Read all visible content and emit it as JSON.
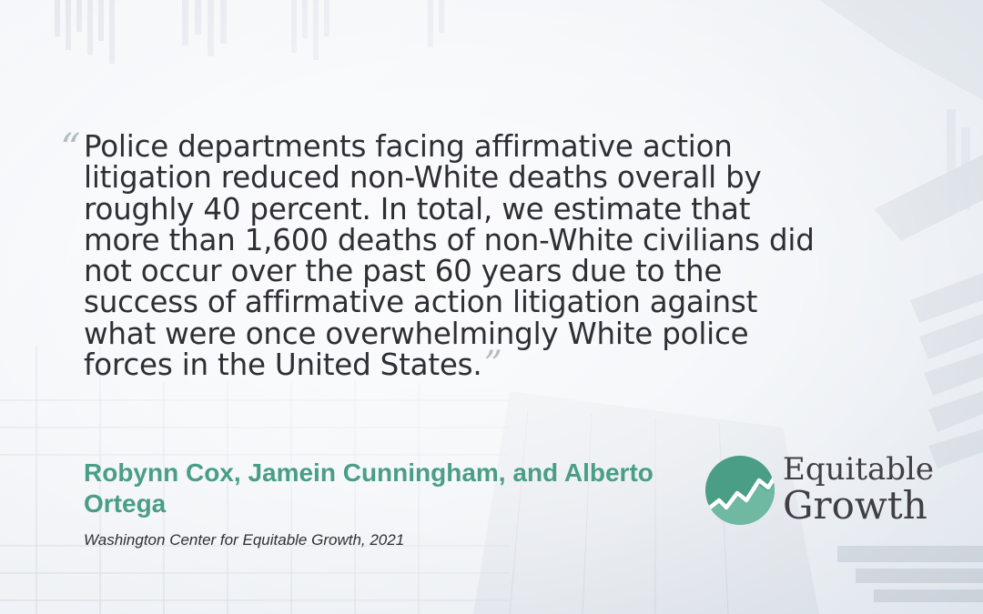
{
  "quote": {
    "text": "Police departments facing affirmative action litigation reduced non-White deaths overall by roughly 40 percent. In total, we estimate that more than 1,600 deaths of non-White civilians did not occur over the past 60 years due to the success of affirmative action litigation against what were once overwhelmingly White police forces in the United States.",
    "open_mark": "“",
    "close_mark": "”"
  },
  "attribution": {
    "authors": "Robynn Cox, Jamein Cunningham, and Alberto Ortega",
    "source": "Washington Center for Equitable Growth, 2021"
  },
  "logo": {
    "line1": "Equitable",
    "line2": "Growth",
    "icon": "rising-line-chart-icon",
    "color": "#4a9e86"
  },
  "colors": {
    "accent": "#4a9e86",
    "text": "#2f2f33"
  }
}
